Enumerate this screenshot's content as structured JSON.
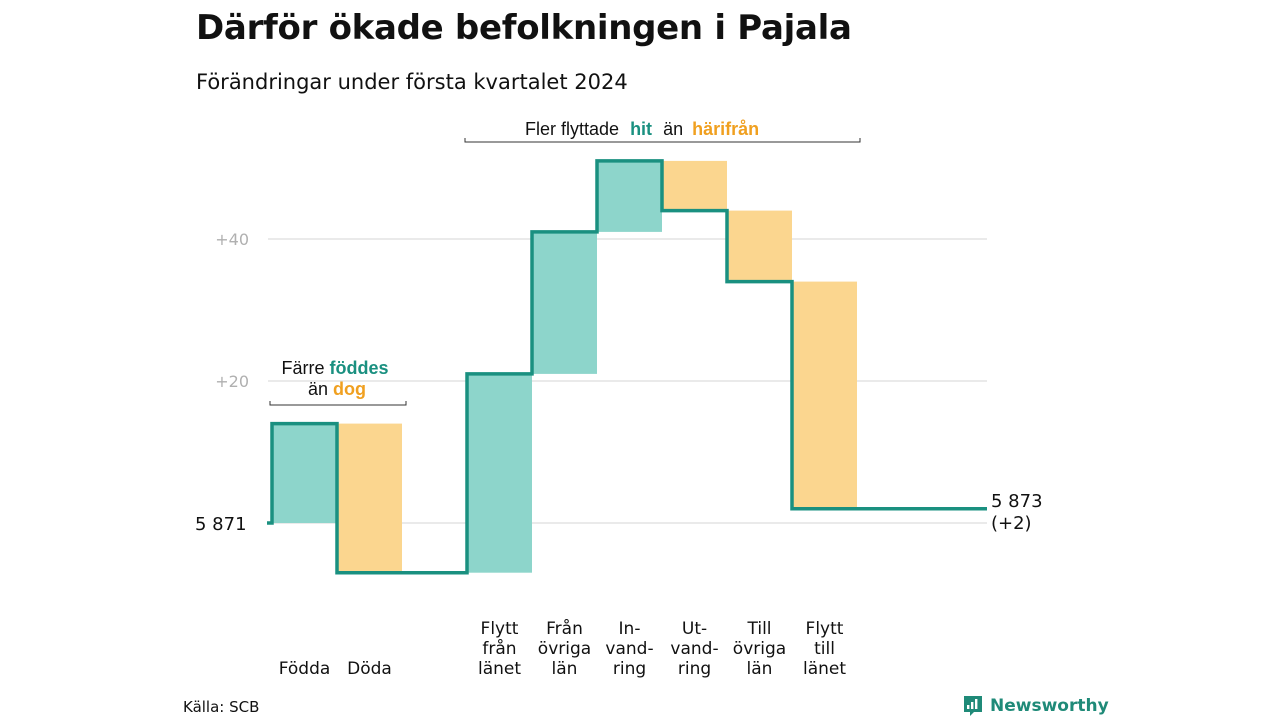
{
  "title": "Därför ökade befolkningen i Pajala",
  "subtitle": "Förändringar under första kvartalet 2024",
  "source": "Källa: SCB",
  "brand": "Newsworthy",
  "colors": {
    "increase": "#8dd5cb",
    "decrease": "#fbd68f",
    "line": "#1a9080",
    "hit": "#1a9080",
    "harifran": "#f0a020",
    "grid": "#e3e3e3"
  },
  "annotations": {
    "migration": {
      "pre": "Fler flyttade",
      "hit": "hit",
      "mid": "än",
      "harifran": "härifrån"
    },
    "natural": {
      "pre": "Färre",
      "foddes": "föddes",
      "mid": "än",
      "dog": "dog"
    }
  },
  "chart_data": {
    "type": "waterfall",
    "start": {
      "label": "5  871",
      "value": 5871
    },
    "end": {
      "label": "5 873",
      "change": "(+2)",
      "value": 5873
    },
    "y_ticks": [
      {
        "value": 20,
        "label": "+20"
      },
      {
        "value": 40,
        "label": "+40"
      }
    ],
    "steps": [
      {
        "label": [
          "Födda"
        ],
        "change": 14,
        "group": "natural"
      },
      {
        "label": [
          "Döda"
        ],
        "change": -21,
        "group": "natural"
      },
      {
        "label": [
          ""
        ],
        "change": 0,
        "group": "gap"
      },
      {
        "label": [
          "Flytt",
          "från",
          "länet"
        ],
        "change": 28,
        "group": "migration"
      },
      {
        "label": [
          "Från",
          "övriga",
          "län"
        ],
        "change": 20,
        "group": "migration"
      },
      {
        "label": [
          "In-",
          "vand-",
          "ring"
        ],
        "change": 10,
        "group": "migration"
      },
      {
        "label": [
          "Ut-",
          "vand-",
          "ring"
        ],
        "change": -7,
        "group": "migration"
      },
      {
        "label": [
          "Till",
          "övriga",
          "län"
        ],
        "change": -10,
        "group": "migration"
      },
      {
        "label": [
          "Flytt",
          "till",
          "länet"
        ],
        "change": -32,
        "group": "migration"
      }
    ]
  }
}
